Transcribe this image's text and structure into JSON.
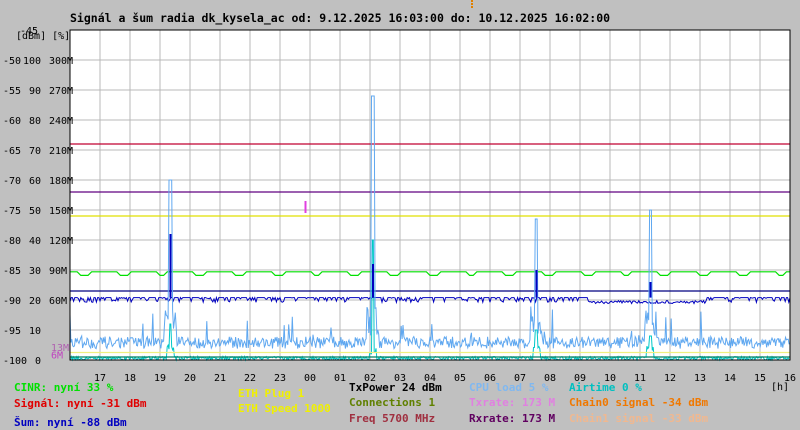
{
  "colors": {
    "background": "#c0c0c0",
    "plot_bg": "#ffffff",
    "grid": "#b8b8b8",
    "frame": "#000000"
  },
  "chart_data": {
    "type": "line",
    "title": "Signál a šum radia dk_kysela_ac od: 9.12.2025 16:03:00 do: 10.12.2025 16:02:00",
    "y_header": "[dBm] [%]",
    "x_unit": "[h]",
    "grid": true,
    "xlim": [
      16,
      40
    ],
    "x_ticks": [
      "17",
      "18",
      "19",
      "20",
      "21",
      "22",
      "23",
      "00",
      "01",
      "02",
      "03",
      "04",
      "05",
      "06",
      "07",
      "08",
      "09",
      "10",
      "11",
      "12",
      "13",
      "14",
      "15",
      "16"
    ],
    "y_axes": {
      "dbm": {
        "ticks": [
          "-45",
          "-50",
          "-55",
          "-60",
          "-65",
          "-70",
          "-75",
          "-80",
          "-85",
          "-90",
          "-95",
          "-100"
        ],
        "range": [
          -100,
          -45
        ]
      },
      "pct": {
        "ticks": [
          "100",
          "90",
          "80",
          "70",
          "60",
          "50",
          "40",
          "30",
          "20",
          "10",
          "0"
        ],
        "range": [
          0,
          110
        ]
      },
      "rate": {
        "ticks": [
          "300M",
          "270M",
          "240M",
          "210M",
          "180M",
          "150M",
          "120M",
          "90M",
          "60M"
        ],
        "range": [
          0,
          330
        ]
      }
    },
    "inline_labels": [
      {
        "text": "13M",
        "color": "#b060b0",
        "y_pct": 4
      },
      {
        "text": "6M",
        "color": "#c040c0",
        "y_pct": 1.5
      }
    ],
    "reference_lines": [
      {
        "name": "Txrate",
        "y_pct": 0,
        "color": "#e0a0e0"
      },
      {
        "name": "Rxrate",
        "y_pct": 0,
        "color": "#800050"
      }
    ],
    "series": [
      {
        "name": "Signál",
        "color": "#c00030",
        "style": "flat",
        "y_dbm": -64
      },
      {
        "name": "Txrate / Rxrate",
        "color": "#600080",
        "style": "flat",
        "y_dbm": -72
      },
      {
        "name": "Chain",
        "color": "#e0e000",
        "style": "flat",
        "y_dbm": -76
      },
      {
        "name": "CINR",
        "color": "#00e000",
        "style": "steps",
        "y_dbm": -85.3
      },
      {
        "name": "Šum",
        "color": "#0000c0",
        "style": "noise",
        "y_dbm": -89.6
      },
      {
        "name": "Šum min",
        "color": "#000080",
        "style": "flat",
        "y_dbm": -88.5
      },
      {
        "name": "CPU load",
        "color": "#60a8f0",
        "style": "cpu",
        "y_pct": 5
      },
      {
        "name": "Airtime",
        "color": "#00c8c8",
        "style": "airtime",
        "y_pct": 0
      },
      {
        "name": "Connections",
        "color": "#008060",
        "style": "flat",
        "y_pct": 1
      },
      {
        "name": "ETH Speed",
        "color": "#f0f080",
        "style": "flat",
        "y_pct": 2.5
      }
    ],
    "events": [
      {
        "x": 19.35,
        "cpu": 60,
        "airtime": 12,
        "dbm": -79
      },
      {
        "x": 26.1,
        "cpu": 88,
        "airtime": 40,
        "dbm": -84
      },
      {
        "x": 31.55,
        "cpu": 47,
        "airtime": 10,
        "dbm": -85
      },
      {
        "x": 35.35,
        "cpu": 50,
        "airtime": 8,
        "dbm": -87
      }
    ],
    "marker": {
      "x": 23.85,
      "y_dbm_from": -73.5,
      "y_dbm_to": -75.5,
      "color": "#e040e0"
    }
  },
  "legend": {
    "col1": [
      {
        "text": "CINR: nyní 33 %",
        "color": "#00e000"
      },
      {
        "text": "Signál: nyní -31 dBm",
        "color": "#e00000"
      },
      {
        "text": "Šum: nyní -88 dBm",
        "color": "#0000c0"
      }
    ],
    "col2": [
      {
        "text": "ETH Plug 1",
        "color": "#f0f000"
      },
      {
        "text": "ETH Speed 1000",
        "color": "#f0f000"
      }
    ],
    "col3": [
      {
        "text": "TxPower 24 dBm",
        "color": "#000000"
      },
      {
        "text": "Connections 1",
        "color": "#608000"
      },
      {
        "text": "Freq 5700 MHz",
        "color": "#a03040"
      }
    ],
    "col4": [
      {
        "text": "CPU load 5 %",
        "color": "#80b8f0"
      },
      {
        "text": "Txrate: 173 M",
        "color": "#e080e0"
      },
      {
        "text": "Rxrate: 173 M",
        "color": "#600060"
      }
    ],
    "col5": [
      {
        "text": "Airtime 0 %",
        "color": "#00c0c0"
      },
      {
        "text": "Chain0 signal -34 dBm",
        "color": "#f07800"
      },
      {
        "text": "Chain1 signal -33 dBm",
        "color": "#f0b890"
      }
    ]
  }
}
